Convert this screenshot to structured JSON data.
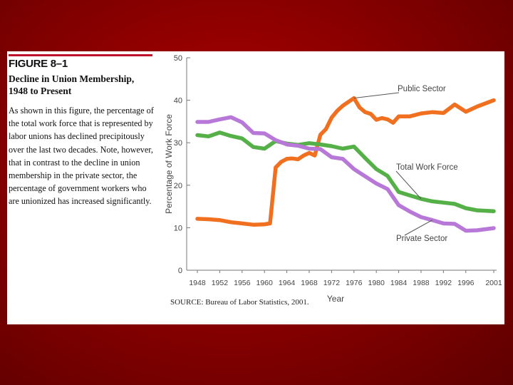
{
  "figure": {
    "label": "FIGURE 8–1",
    "title_line1": "Decline in Union Membership,",
    "title_line2": "1948 to Present",
    "caption": "As shown in this figure, the percentage of the total work force that is represented by labor unions has declined precipitously over the last two decades. Note, however, that in contrast to the decline in union membership in the private sector, the percentage of government workers who are unionized has increased significantly.",
    "source": "SOURCE: Bureau of Labor Statistics, 2001."
  },
  "chart_data": {
    "type": "line",
    "title": "",
    "xlabel": "Year",
    "ylabel": "Percentage of Work Force",
    "xlim": [
      1948,
      2001
    ],
    "ylim": [
      0,
      50
    ],
    "x_ticks": [
      "1948",
      "1952",
      "1956",
      "1960",
      "1964",
      "1968",
      "1972",
      "1976",
      "1980",
      "1984",
      "1988",
      "1992",
      "1996",
      "2001"
    ],
    "y_ticks": [
      "0",
      "10",
      "20",
      "30",
      "40",
      "50"
    ],
    "series": [
      {
        "name": "Public Sector",
        "color": "#f07020",
        "x": [
          1948,
          1950,
          1952,
          1954,
          1956,
          1958,
          1960,
          1961,
          1962,
          1963,
          1964,
          1965,
          1966,
          1967,
          1968,
          1969,
          1970,
          1971,
          1972,
          1973,
          1974,
          1975,
          1976,
          1977,
          1978,
          1979,
          1980,
          1981,
          1982,
          1983,
          1984,
          1986,
          1988,
          1990,
          1992,
          1994,
          1996,
          1998,
          2001
        ],
        "values": [
          12.1,
          12.0,
          11.8,
          11.3,
          11.0,
          10.7,
          10.8,
          11.0,
          24.2,
          25.5,
          26.2,
          26.3,
          26.1,
          27.0,
          27.6,
          27.0,
          31.9,
          33.2,
          35.9,
          37.5,
          38.7,
          39.6,
          40.5,
          38.3,
          37.2,
          36.8,
          35.4,
          35.8,
          35.5,
          34.7,
          36.2,
          36.2,
          36.9,
          37.2,
          37.0,
          39.0,
          37.3,
          38.5,
          40.0
        ]
      },
      {
        "name": "Total Work Force",
        "color": "#55b048",
        "x": [
          1948,
          1950,
          1952,
          1954,
          1956,
          1958,
          1960,
          1962,
          1964,
          1966,
          1968,
          1970,
          1972,
          1974,
          1976,
          1978,
          1980,
          1982,
          1984,
          1986,
          1988,
          1990,
          1992,
          1994,
          1996,
          1998,
          2001
        ],
        "values": [
          31.8,
          31.5,
          32.4,
          31.6,
          31.0,
          29.0,
          28.6,
          30.4,
          29.8,
          29.5,
          29.9,
          29.6,
          29.2,
          28.6,
          29.1,
          26.4,
          23.8,
          22.2,
          18.4,
          17.6,
          16.8,
          16.2,
          15.9,
          15.6,
          14.6,
          14.1,
          13.9
        ]
      },
      {
        "name": "Private Sector",
        "color": "#b878d8",
        "x": [
          1948,
          1950,
          1952,
          1954,
          1956,
          1958,
          1960,
          1962,
          1964,
          1966,
          1968,
          1970,
          1972,
          1974,
          1976,
          1978,
          1980,
          1982,
          1984,
          1986,
          1988,
          1990,
          1992,
          1994,
          1996,
          1998,
          2001
        ],
        "values": [
          34.9,
          34.9,
          35.5,
          36.0,
          34.8,
          32.3,
          32.2,
          30.6,
          29.6,
          29.3,
          28.6,
          28.5,
          26.6,
          26.2,
          23.8,
          22.1,
          20.4,
          19.1,
          15.3,
          13.8,
          12.5,
          11.8,
          11.0,
          10.9,
          9.3,
          9.4,
          9.9
        ]
      }
    ],
    "annotations": [
      {
        "text": "Public Sector",
        "series": "Public Sector"
      },
      {
        "text": "Total Work Force",
        "series": "Total Work Force"
      },
      {
        "text": "Private Sector",
        "series": "Private Sector"
      }
    ]
  }
}
